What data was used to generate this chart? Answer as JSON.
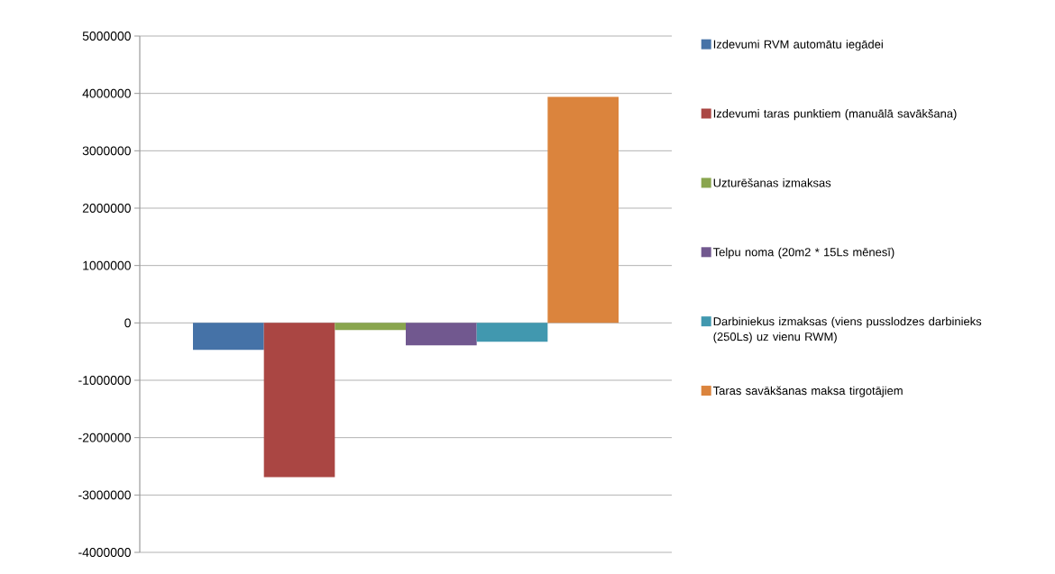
{
  "chart_data": {
    "type": "bar",
    "categories": [
      null
    ],
    "series": [
      {
        "name": "Izdevumi RVM automātu iegādei",
        "color": "#4572a7",
        "values": [
          -470000
        ]
      },
      {
        "name": "Izdevumi taras punktiem (manuālā savākšana)",
        "color": "#aa4643",
        "values": [
          -2690000
        ]
      },
      {
        "name": "Uzturēšanas izmaksas",
        "color": "#89a54e",
        "values": [
          -125000
        ]
      },
      {
        "name": "Telpu noma (20m2 * 15Ls mēnesī)",
        "color": "#71588f",
        "values": [
          -390000
        ]
      },
      {
        "name": "Darbiniekus izmaksas (viens pusslodzes darbinieks (250Ls) uz vienu RWM)",
        "color": "#4198af",
        "values": [
          -330000
        ]
      },
      {
        "name": "Taras savākšanas maksa tirgotājiem",
        "color": "#db843d",
        "values": [
          3940000
        ]
      }
    ],
    "ylim": [
      -4000000,
      5000000
    ],
    "yticks": [
      -4000000,
      -3000000,
      -2000000,
      -1000000,
      0,
      1000000,
      2000000,
      3000000,
      4000000,
      5000000
    ],
    "grid": "y",
    "legend": "right"
  }
}
